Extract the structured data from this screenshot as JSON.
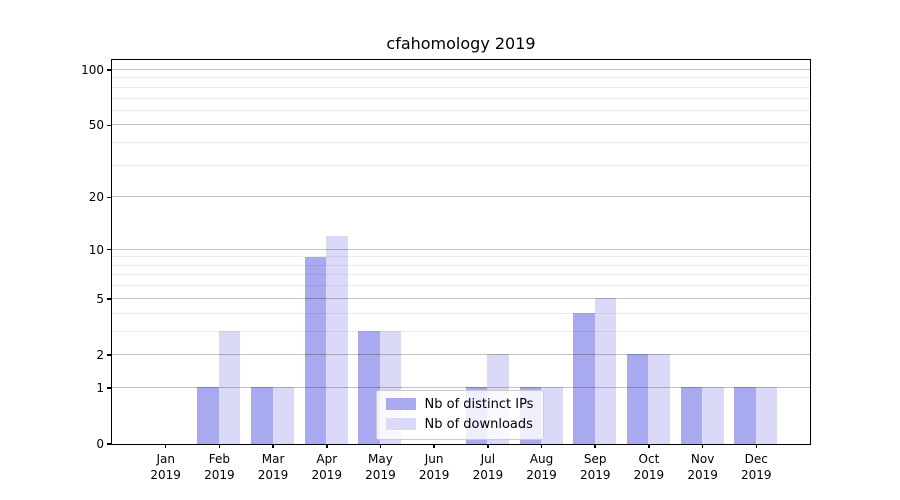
{
  "chart_data": {
    "type": "bar",
    "title": "cfahomology 2019",
    "categories": [
      "Jan",
      "Feb",
      "Mar",
      "Apr",
      "May",
      "Jun",
      "Jul",
      "Aug",
      "Sep",
      "Oct",
      "Nov",
      "Dec"
    ],
    "category_year": "2019",
    "series": [
      {
        "name": "Nb of distinct IPs",
        "color": "#a9a9f0",
        "values": [
          0,
          1,
          1,
          9,
          3,
          0,
          1,
          1,
          4,
          2,
          1,
          1
        ]
      },
      {
        "name": "Nb of downloads",
        "color": "#dadaf8",
        "values": [
          0,
          3,
          1,
          12,
          3,
          0,
          2,
          1,
          5,
          2,
          1,
          1
        ]
      }
    ],
    "y_scale": "log10(1+v)",
    "y_major_ticks": [
      0,
      1,
      2,
      5,
      10,
      20,
      50,
      100
    ],
    "y_minor_gridlines": [
      3,
      4,
      6,
      7,
      8,
      9,
      30,
      40,
      60,
      70,
      80,
      90
    ],
    "y_major_gridlines": [
      1,
      2,
      5,
      10,
      20,
      50,
      100
    ],
    "ylim_top_value": 113,
    "xlim": [
      0,
      13
    ],
    "legend_position": "lower-center",
    "grid": "on",
    "colors": {
      "spine": "#000000",
      "major_grid": "#c5c5c5",
      "minor_grid": "#ececec",
      "background": "#ffffff"
    }
  }
}
